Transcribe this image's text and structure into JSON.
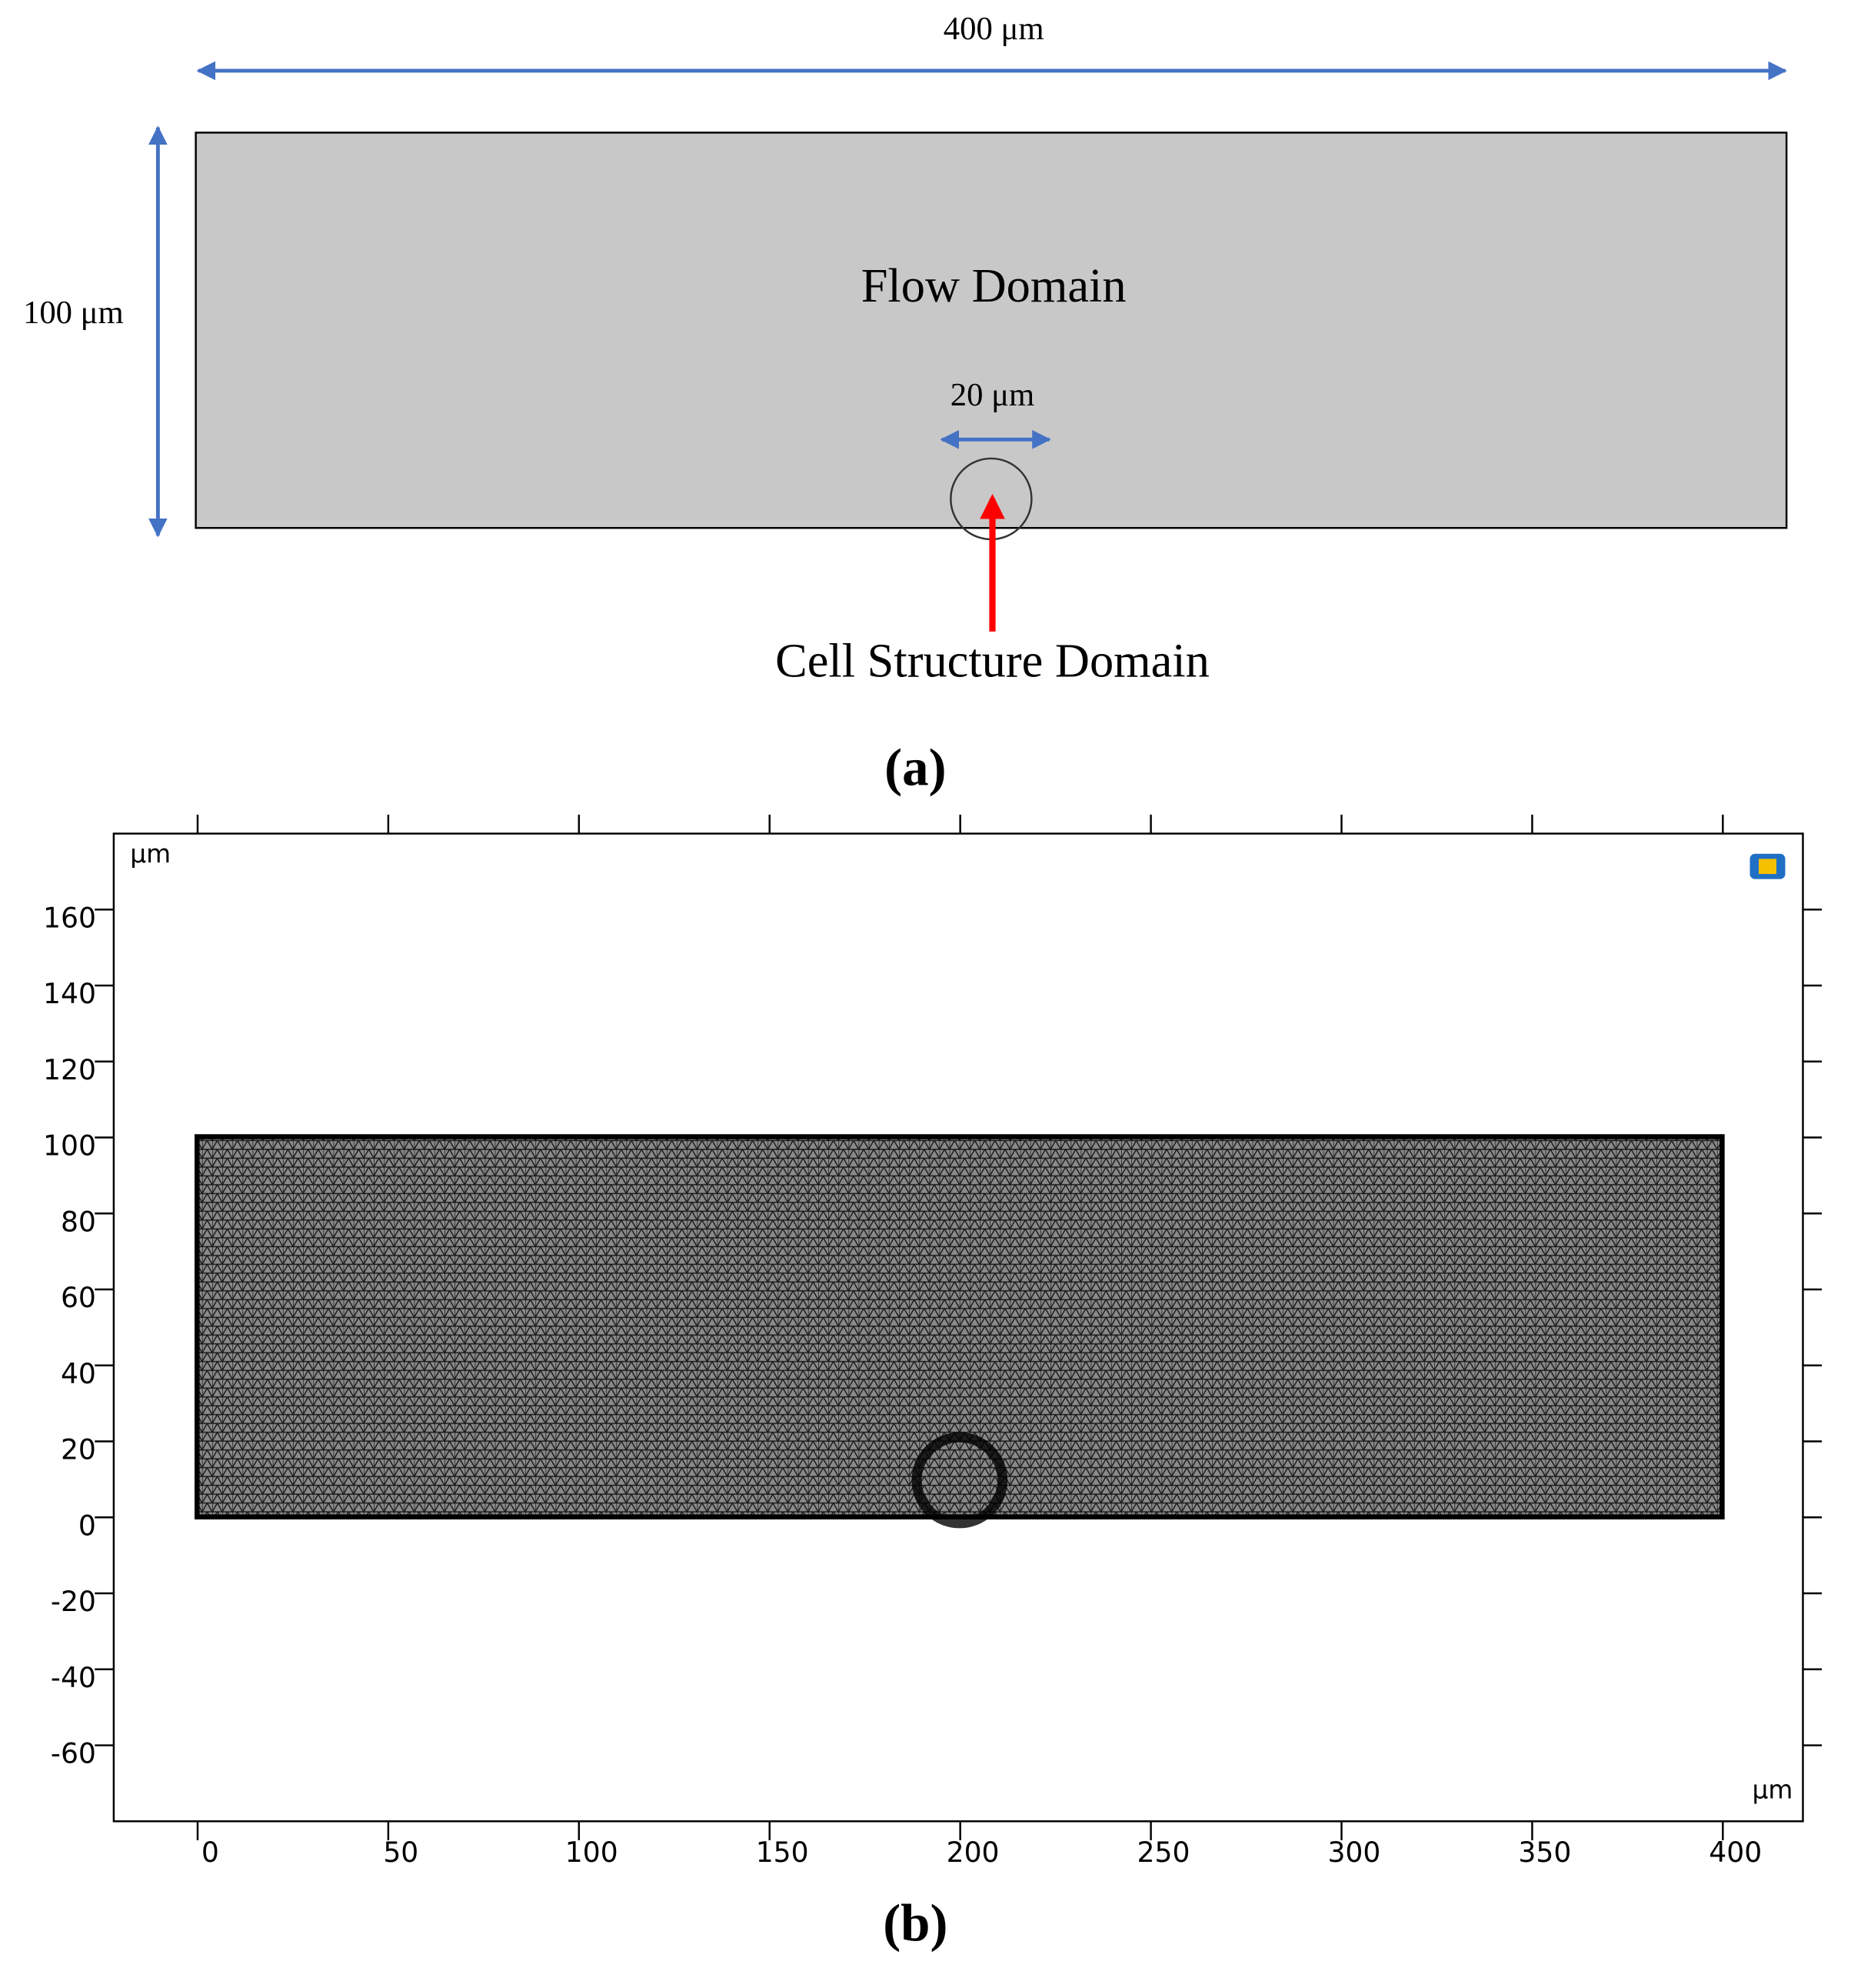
{
  "panel_a": {
    "width_label": "400 μm",
    "height_label": "100 μm",
    "flow_label": "Flow Domain",
    "cell_width_label": "20 μm",
    "cell_label": "Cell Structure Domain",
    "caption": "(a)"
  },
  "panel_b": {
    "y_unit": "μm",
    "x_unit": "μm",
    "xlim": [
      -22,
      421
    ],
    "ylim": [
      -80,
      180
    ],
    "xticks": [
      0,
      50,
      100,
      150,
      200,
      250,
      300,
      350,
      400
    ],
    "yticks": [
      -60,
      -40,
      -20,
      0,
      20,
      40,
      60,
      80,
      100,
      120,
      140,
      160
    ],
    "caption": "(b)"
  }
}
